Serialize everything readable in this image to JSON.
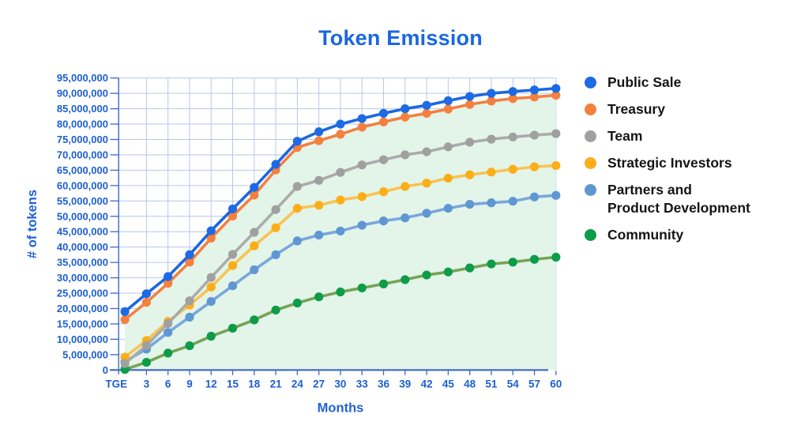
{
  "chart_data": {
    "type": "line",
    "title": "Token Emission",
    "title_color": "#1A67E2",
    "xlabel": "Months",
    "ylabel": "# of tokens",
    "axis_title_color": "#2161DB",
    "tick_label_color": "#1D5FD1",
    "axis_line_color": "#3E68C8",
    "grid_color": "#B7C6EE",
    "grid_on": true,
    "fill_under_series": "Treasury",
    "fill_color": "#E3F4E9",
    "legend_position": "right",
    "ylim": [
      0,
      95000000
    ],
    "ytick_step": 5000000,
    "categories": [
      "TGE",
      "3",
      "6",
      "9",
      "12",
      "15",
      "18",
      "21",
      "24",
      "27",
      "30",
      "33",
      "36",
      "39",
      "42",
      "45",
      "48",
      "51",
      "54",
      "57",
      "60"
    ],
    "series": [
      {
        "name": "Public Sale",
        "legend_lines": [
          "Public Sale"
        ],
        "line_color": "#1B67E0",
        "marker_color": "#1D6AE5",
        "values": [
          19000000,
          24800000,
          30400000,
          37500000,
          45300000,
          52400000,
          59400000,
          66900000,
          74400000,
          77500000,
          80000000,
          81800000,
          83500000,
          85000000,
          86100000,
          87600000,
          89000000,
          90000000,
          90600000,
          91100000,
          91600000
        ]
      },
      {
        "name": "Treasury",
        "legend_lines": [
          "Treasury"
        ],
        "line_color": "#F28140",
        "marker_color": "#F5803E",
        "values": [
          16400000,
          22000000,
          28200000,
          35100000,
          42900000,
          50100000,
          56900000,
          65100000,
          72400000,
          74600000,
          76700000,
          79000000,
          80700000,
          82300000,
          83500000,
          84900000,
          86400000,
          87500000,
          88300000,
          88800000,
          89400000
        ]
      },
      {
        "name": "Team",
        "legend_lines": [
          "Team"
        ],
        "line_color": "#ABABAB",
        "marker_color": "#A0A0A0",
        "values": [
          2100000,
          8000000,
          15100000,
          22500000,
          30100000,
          37600000,
          44800000,
          52200000,
          59700000,
          61700000,
          64300000,
          66700000,
          68400000,
          70000000,
          71000000,
          72600000,
          74100000,
          75100000,
          75800000,
          76400000,
          76900000
        ]
      },
      {
        "name": "Strategic Investors",
        "legend_lines": [
          "Strategic Investors"
        ],
        "line_color": "#F8C353",
        "marker_color": "#FBAE17",
        "values": [
          4200000,
          9600000,
          15800000,
          21100000,
          27000000,
          34000000,
          40400000,
          46300000,
          52600000,
          53600000,
          55300000,
          56400000,
          58000000,
          59700000,
          60800000,
          62400000,
          63500000,
          64400000,
          65300000,
          66100000,
          66500000
        ]
      },
      {
        "name": "Partners and Product Development",
        "legend_lines": [
          "Partners and",
          "Product Development"
        ],
        "line_color": "#79A7DD",
        "marker_color": "#5F97D2",
        "values": [
          2800000,
          6800000,
          12200000,
          17200000,
          22300000,
          27400000,
          32600000,
          37500000,
          42000000,
          43900000,
          45200000,
          47100000,
          48500000,
          49500000,
          51000000,
          52600000,
          53900000,
          54400000,
          54900000,
          56300000,
          56800000
        ]
      },
      {
        "name": "Community",
        "legend_lines": [
          "Community"
        ],
        "line_color": "#74A455",
        "marker_color": "#0D9C48",
        "values": [
          200000,
          2500000,
          5500000,
          7900000,
          11000000,
          13600000,
          16300000,
          19500000,
          21800000,
          23800000,
          25400000,
          26700000,
          28000000,
          29400000,
          30900000,
          31900000,
          33200000,
          34500000,
          35100000,
          36000000,
          36700000
        ]
      }
    ]
  }
}
